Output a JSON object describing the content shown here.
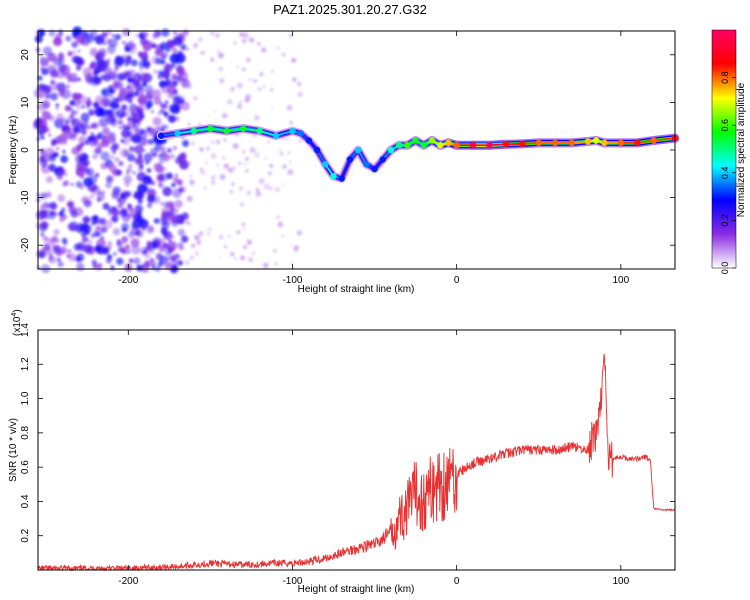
{
  "title": "PAZ1.2025.301.20.27.G32",
  "chart_data": [
    {
      "type": "heatmap",
      "xlabel": "Height of straight line (km)",
      "ylabel": "Frequency (Hz)",
      "xlim": [
        -255,
        133
      ],
      "ylim": [
        -25,
        25
      ],
      "x_ticks": [
        -200,
        -100,
        0,
        100
      ],
      "y_ticks": [
        -20,
        -10,
        0,
        10,
        20
      ],
      "colorbar": {
        "label": "Normalized spectral amplitude",
        "range": [
          0,
          1
        ],
        "ticks": [
          0.0,
          0.2,
          0.4,
          0.6,
          0.8
        ],
        "colors": [
          "#ffffff",
          "#8a2be2",
          "#0000ff",
          "#00ffff",
          "#00ff00",
          "#ffff00",
          "#ff0000",
          "#ff0066"
        ]
      },
      "ridge": {
        "x": [
          -180,
          -170,
          -160,
          -150,
          -140,
          -130,
          -120,
          -110,
          -100,
          -95,
          -90,
          -85,
          -80,
          -75,
          -70,
          -65,
          -60,
          -55,
          -50,
          -45,
          -40,
          -35,
          -30,
          -25,
          -20,
          -15,
          -10,
          -5,
          0,
          10,
          20,
          30,
          40,
          50,
          60,
          70,
          80,
          85,
          90,
          100,
          110,
          120,
          133
        ],
        "y": [
          3,
          3.5,
          4,
          4.5,
          4,
          4.5,
          4,
          3,
          4,
          3.5,
          2,
          0,
          -3,
          -5.5,
          -6,
          -2,
          0,
          -3,
          -4,
          -2,
          0,
          1,
          1,
          2,
          1,
          2,
          1,
          1.5,
          1,
          1,
          1,
          1.2,
          1.3,
          1.5,
          1.5,
          1.5,
          1.8,
          2,
          1.5,
          1.5,
          1.5,
          2,
          2.5
        ],
        "amplitude": [
          0.3,
          0.4,
          0.5,
          0.55,
          0.55,
          0.55,
          0.5,
          0.4,
          0.4,
          0.35,
          0.3,
          0.3,
          0.4,
          0.45,
          0.3,
          0.3,
          0.4,
          0.35,
          0.3,
          0.3,
          0.45,
          0.5,
          0.6,
          0.55,
          0.55,
          0.65,
          0.7,
          0.75,
          0.8,
          0.95,
          1.0,
          0.85,
          0.85,
          0.8,
          0.8,
          0.8,
          0.75,
          0.7,
          0.75,
          0.8,
          0.85,
          0.8,
          0.85
        ]
      }
    },
    {
      "type": "line",
      "xlabel": "Height of straight line (km)",
      "ylabel": "SNR (10 * v/v)",
      "scale_label_prefix": "(x10",
      "scale_label_exponent": "4",
      "scale_label_suffix": ")",
      "xlim": [
        -255,
        133
      ],
      "ylim": [
        0,
        1.4
      ],
      "x_ticks": [
        -200,
        -100,
        0,
        100
      ],
      "y_ticks": [
        0.2,
        0.4,
        0.6,
        0.8,
        1.0,
        1.2,
        1.4
      ],
      "series": [
        {
          "color": "#e83030",
          "x": [
            -255,
            -200,
            -170,
            -150,
            -130,
            -110,
            -100,
            -90,
            -80,
            -70,
            -60,
            -50,
            -40,
            -35,
            -30,
            -25,
            -20,
            -15,
            -10,
            -5,
            0,
            10,
            20,
            30,
            40,
            50,
            60,
            70,
            80,
            85,
            88,
            90,
            92,
            95,
            100,
            105,
            110,
            115,
            118,
            120,
            125,
            133
          ],
          "y": [
            0.01,
            0.01,
            0.02,
            0.04,
            0.03,
            0.04,
            0.04,
            0.05,
            0.07,
            0.1,
            0.13,
            0.15,
            0.22,
            0.3,
            0.35,
            0.45,
            0.4,
            0.48,
            0.5,
            0.52,
            0.56,
            0.62,
            0.65,
            0.68,
            0.7,
            0.7,
            0.7,
            0.72,
            0.7,
            0.8,
            1.0,
            1.25,
            0.7,
            0.65,
            0.66,
            0.65,
            0.65,
            0.66,
            0.64,
            0.36,
            0.35,
            0.35
          ]
        }
      ]
    }
  ]
}
